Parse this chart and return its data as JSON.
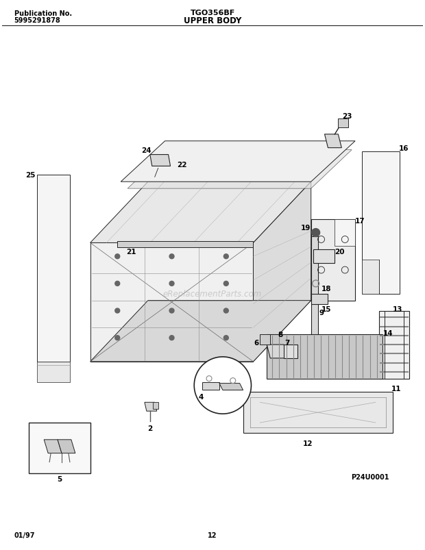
{
  "page_title_left_line1": "Publication No.",
  "page_title_left_line2": "5995291878",
  "page_title_center": "TGO356BF",
  "page_subtitle_center": "UPPER BODY",
  "footer_left": "01/97",
  "footer_center": "12",
  "watermark": "eReplacementParts.com",
  "diagram_id": "P24U0001",
  "bg_color": "#ffffff",
  "line_color": "#222222"
}
